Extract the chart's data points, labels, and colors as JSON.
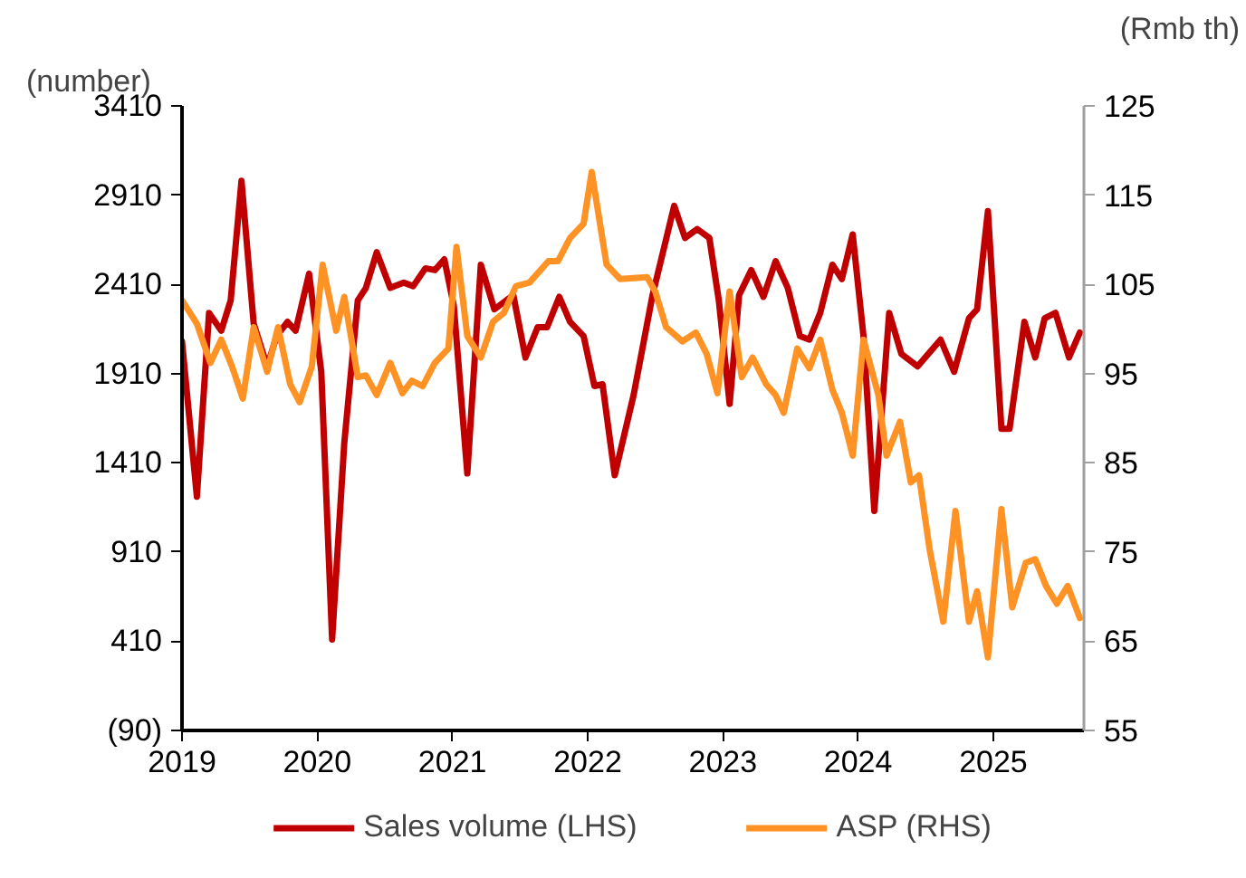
{
  "chart_data": {
    "type": "line",
    "ylabel": "(number)",
    "y2label": "(Rmb th)",
    "xlim": [
      2019,
      2025.67
    ],
    "xticks": [
      2019,
      2020,
      2021,
      2022,
      2023,
      2024,
      2025
    ],
    "ylim": [
      -90,
      3410
    ],
    "yticks": [
      {
        "value": -90,
        "label": "(90)"
      },
      410,
      910,
      1410,
      1910,
      2410,
      2910,
      3410
    ],
    "y2lim": [
      55,
      125
    ],
    "y2ticks": [
      55,
      65,
      75,
      85,
      95,
      105,
      115,
      125
    ],
    "grid": false,
    "legend": "bottom",
    "line_style": "solid",
    "marker": "none",
    "series": [
      {
        "name": "Sales volume (LHS)",
        "color": "#c00000",
        "x": [
          2019.0,
          2019.11,
          2019.2,
          2019.29,
          2019.36,
          2019.44,
          2019.53,
          2019.63,
          2019.7,
          2019.78,
          2019.84,
          2019.94,
          2020.03,
          2020.11,
          2020.2,
          2020.3,
          2020.36,
          2020.44,
          2020.54,
          2020.64,
          2020.71,
          2020.8,
          2020.87,
          2020.94,
          2021.01,
          2021.11,
          2021.21,
          2021.31,
          2021.45,
          2021.54,
          2021.63,
          2021.7,
          2021.79,
          2021.87,
          2021.97,
          2022.05,
          2022.11,
          2022.2,
          2022.34,
          2022.48,
          2022.64,
          2022.72,
          2022.81,
          2022.9,
          2022.97,
          2023.05,
          2023.12,
          2023.21,
          2023.3,
          2023.39,
          2023.48,
          2023.57,
          2023.64,
          2023.72,
          2023.81,
          2023.88,
          2023.96,
          2024.04,
          2024.12,
          2024.23,
          2024.32,
          2024.44,
          2024.61,
          2024.71,
          2024.82,
          2024.88,
          2024.96,
          2025.06,
          2025.12,
          2025.23,
          2025.31,
          2025.38,
          2025.46,
          2025.56,
          2025.64
        ],
        "values": [
          2090,
          1220,
          2250,
          2150,
          2320,
          2990,
          2190,
          1950,
          2120,
          2200,
          2150,
          2470,
          1920,
          420,
          1520,
          2320,
          2390,
          2590,
          2390,
          2420,
          2400,
          2500,
          2490,
          2550,
          2290,
          1350,
          2520,
          2270,
          2350,
          2000,
          2170,
          2170,
          2340,
          2200,
          2120,
          1840,
          1850,
          1340,
          1790,
          2350,
          2850,
          2670,
          2720,
          2670,
          2320,
          1740,
          2350,
          2490,
          2340,
          2540,
          2390,
          2120,
          2100,
          2250,
          2520,
          2440,
          2690,
          2120,
          1140,
          2250,
          2020,
          1950,
          2100,
          1920,
          2220,
          2270,
          2820,
          1600,
          1600,
          2200,
          2000,
          2220,
          2250,
          2000,
          2140
        ]
      },
      {
        "name": "ASP (RHS)",
        "color": "#ff9224",
        "axis": "y2",
        "x": [
          2019.0,
          2019.11,
          2019.21,
          2019.29,
          2019.37,
          2019.45,
          2019.53,
          2019.63,
          2019.71,
          2019.8,
          2019.87,
          2019.96,
          2020.04,
          2020.14,
          2020.2,
          2020.3,
          2020.36,
          2020.44,
          2020.54,
          2020.63,
          2020.7,
          2020.78,
          2020.87,
          2020.97,
          2021.03,
          2021.11,
          2021.21,
          2021.3,
          2021.38,
          2021.47,
          2021.57,
          2021.71,
          2021.78,
          2021.87,
          2021.97,
          2022.03,
          2022.14,
          2022.24,
          2022.44,
          2022.5,
          2022.58,
          2022.7,
          2022.8,
          2022.88,
          2022.96,
          2023.05,
          2023.14,
          2023.22,
          2023.32,
          2023.39,
          2023.45,
          2023.55,
          2023.64,
          2023.72,
          2023.81,
          2023.88,
          2023.96,
          2024.04,
          2024.15,
          2024.21,
          2024.31,
          2024.39,
          2024.45,
          2024.53,
          2024.63,
          2024.72,
          2024.82,
          2024.88,
          2024.96,
          2025.06,
          2025.14,
          2025.24,
          2025.31,
          2025.39,
          2025.47,
          2025.55,
          2025.64
        ],
        "values": [
          103.2,
          100.6,
          96.2,
          98.8,
          95.8,
          92.2,
          100.2,
          95.2,
          100.2,
          93.8,
          91.8,
          95.8,
          107.2,
          99.8,
          103.6,
          94.6,
          94.8,
          92.6,
          96.2,
          92.8,
          94.2,
          93.6,
          96.2,
          97.8,
          109.2,
          99.2,
          96.8,
          100.8,
          101.8,
          104.8,
          105.2,
          107.6,
          107.6,
          110.2,
          111.8,
          117.6,
          107.2,
          105.6,
          105.8,
          104.2,
          100.2,
          98.6,
          99.6,
          97.2,
          92.8,
          104.2,
          94.6,
          96.8,
          93.8,
          92.6,
          90.6,
          97.8,
          95.6,
          98.8,
          93.2,
          90.6,
          85.8,
          98.8,
          92.6,
          85.8,
          89.6,
          82.8,
          83.6,
          75.2,
          67.2,
          79.6,
          67.2,
          70.6,
          63.2,
          79.8,
          68.8,
          73.8,
          74.2,
          71.2,
          69.2,
          71.2,
          67.6
        ]
      }
    ]
  }
}
